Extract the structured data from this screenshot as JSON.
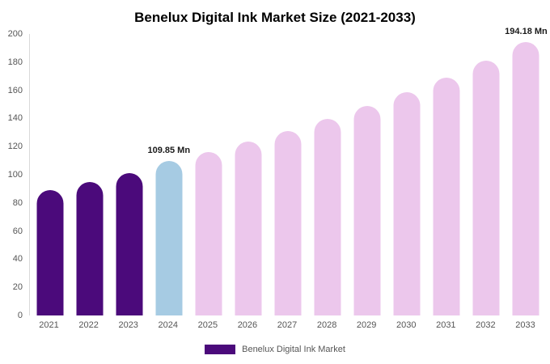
{
  "title": "Benelux Digital Ink Market Size (2021-2033)",
  "legend": {
    "label": "Benelux Digital Ink Market",
    "swatch_color": "#4B0A7B"
  },
  "chart_data": {
    "type": "bar",
    "title": "Benelux Digital Ink Market Size (2021-2033)",
    "categories": [
      "2021",
      "2022",
      "2023",
      "2024",
      "2025",
      "2026",
      "2027",
      "2028",
      "2029",
      "2030",
      "2031",
      "2032",
      "2033"
    ],
    "values": [
      89.2,
      95.0,
      101.4,
      109.85,
      116.2,
      123.3,
      131.0,
      139.6,
      148.8,
      158.6,
      169.2,
      180.8,
      194.18
    ],
    "bar_colors": [
      "#4B0A7B",
      "#4B0A7B",
      "#4B0A7B",
      "#A6CBE3",
      "#ECC7EC",
      "#ECC7EC",
      "#ECC7EC",
      "#ECC7EC",
      "#ECC7EC",
      "#ECC7EC",
      "#ECC7EC",
      "#ECC7EC",
      "#ECC7EC"
    ],
    "ylim": [
      0,
      200
    ],
    "yticks": [
      0,
      20,
      40,
      60,
      80,
      100,
      120,
      140,
      160,
      180,
      200
    ],
    "grid": false,
    "legend_position": "bottom",
    "annotations": [
      {
        "category": "2024",
        "text": "109.85 Mn"
      },
      {
        "category": "2033",
        "text": "194.18 Mn"
      }
    ]
  }
}
